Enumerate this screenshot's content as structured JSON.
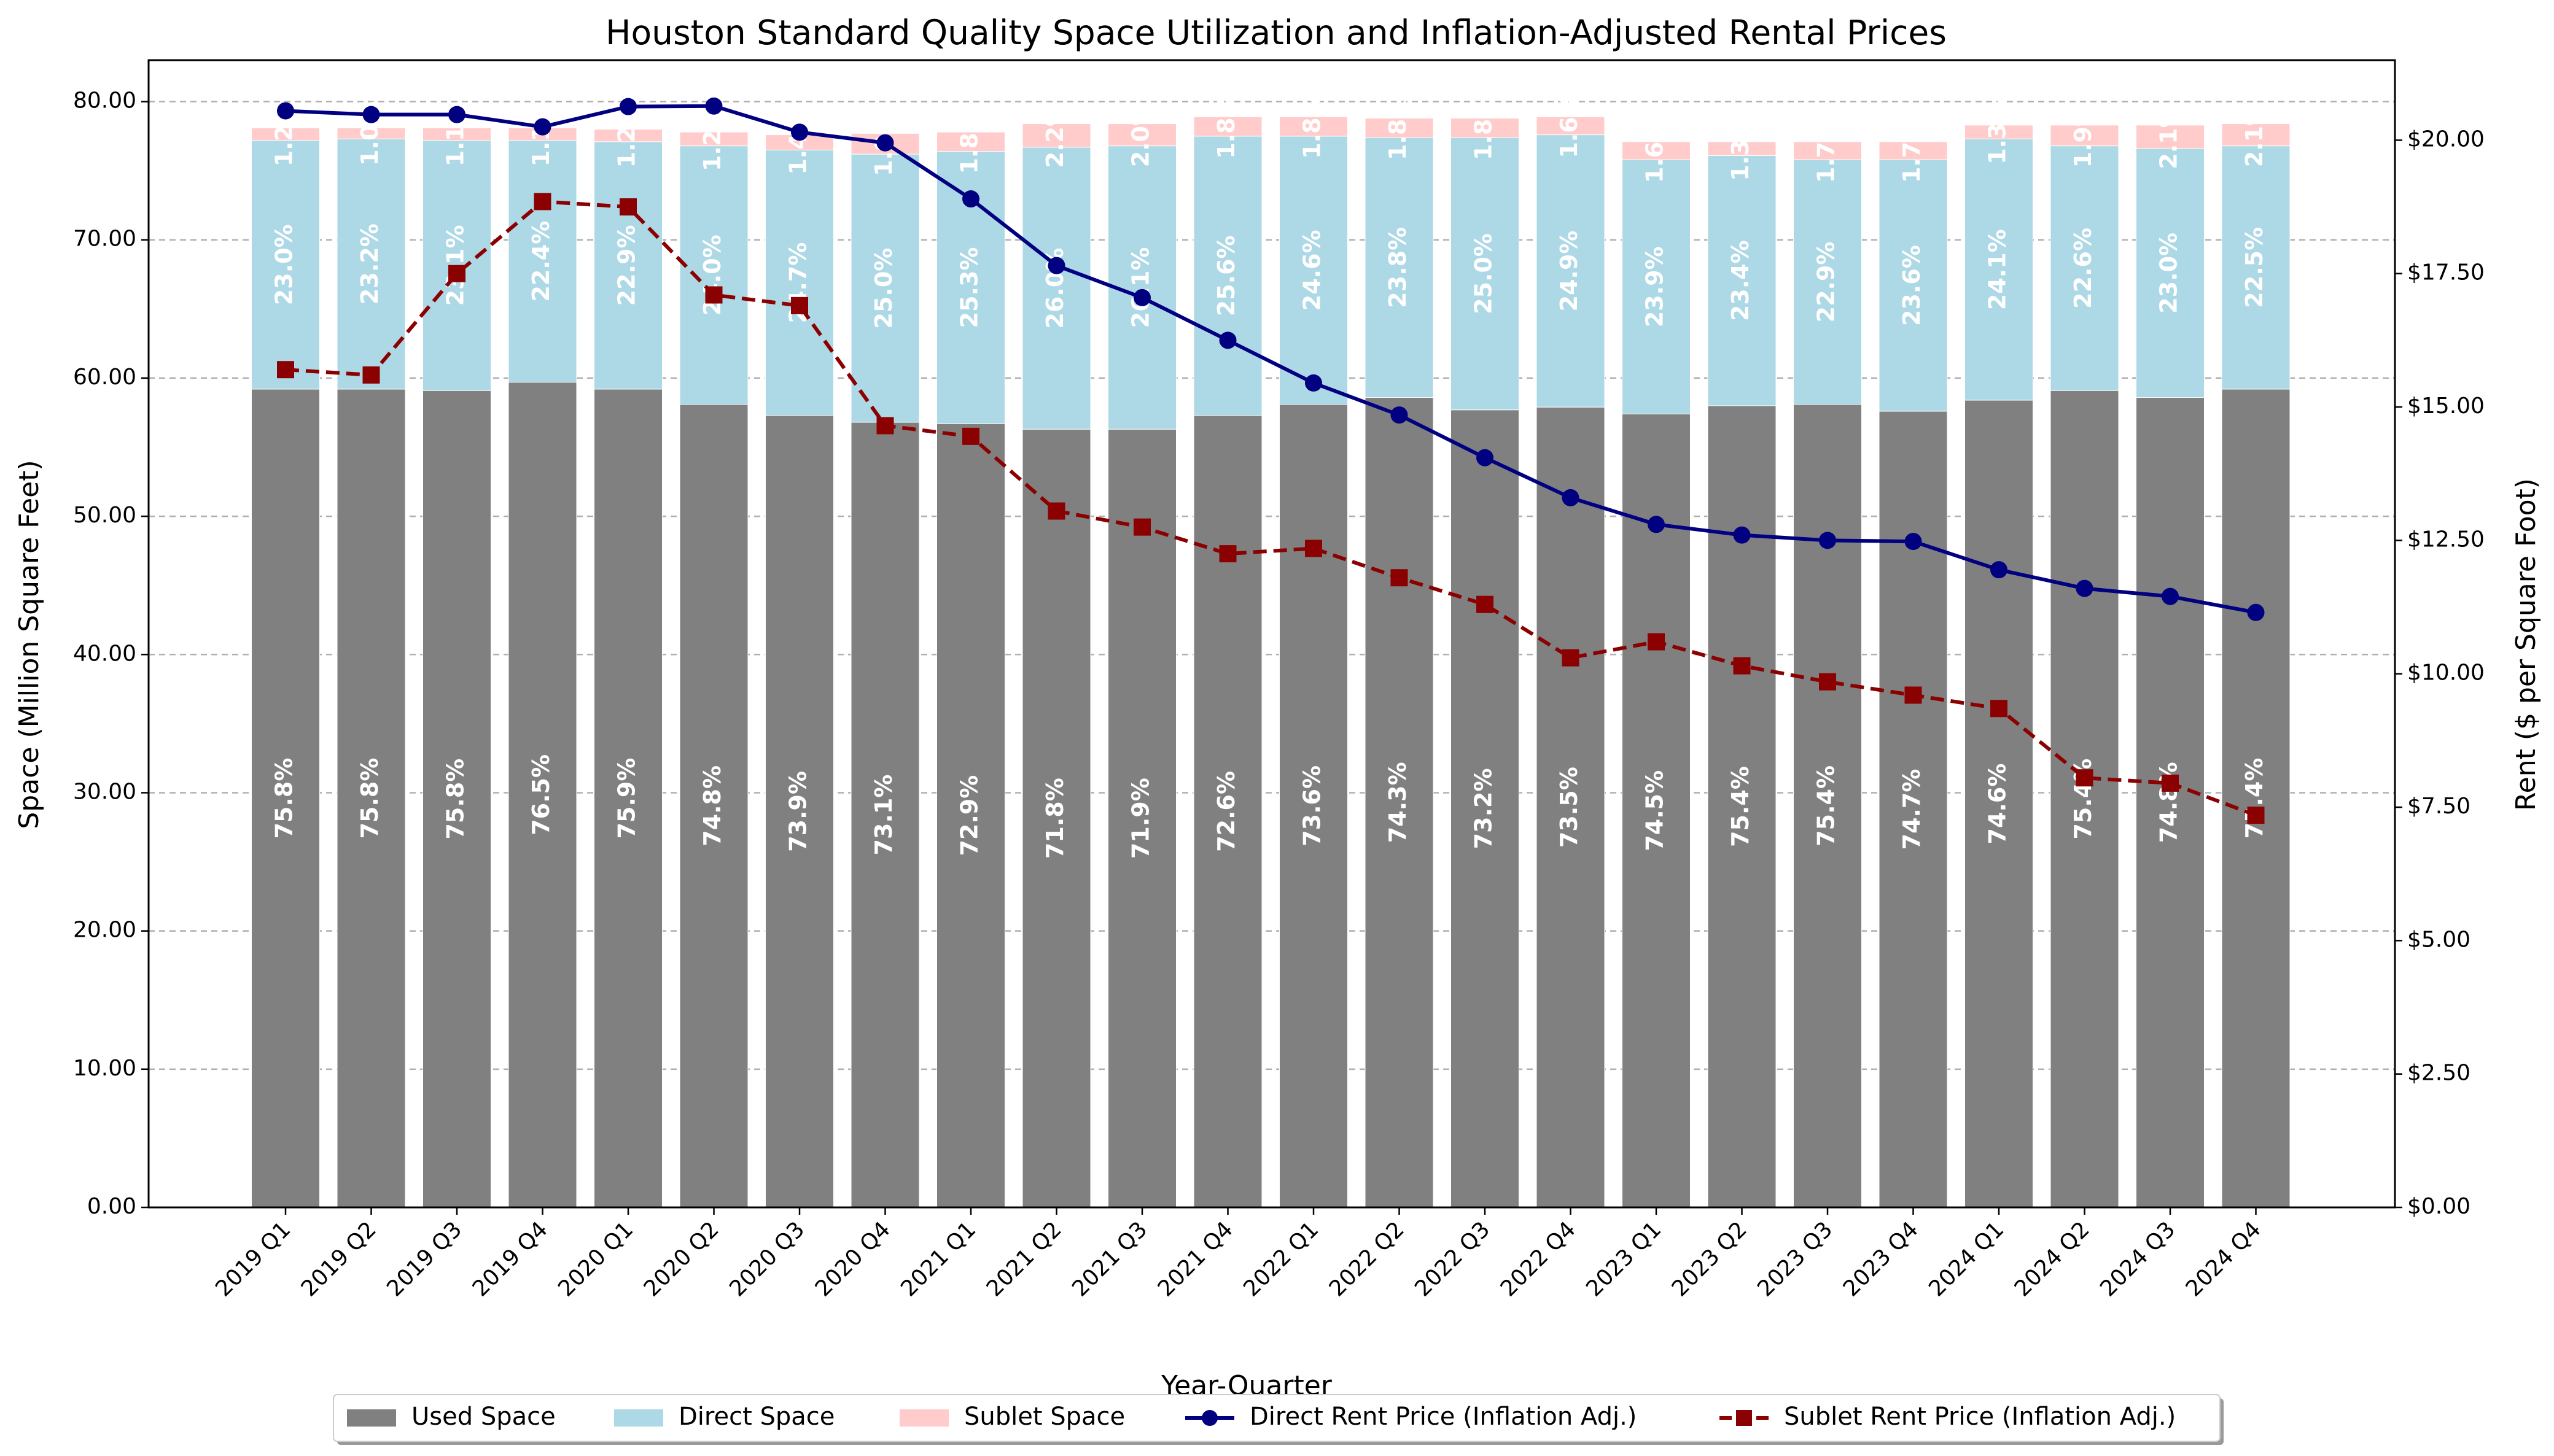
{
  "chart_data": {
    "type": "bar",
    "title": "Houston Standard Quality Space Utilization and Inflation-Adjusted Rental Prices",
    "xlabel": "Year-Quarter",
    "ylabel_left": "Space (Million Square Feet)",
    "ylabel_right": "Rent ($ per Square Foot)",
    "ylim_left": [
      0,
      83
    ],
    "ylim_right": [
      0,
      21.5
    ],
    "left_ticks": [
      "0.00",
      "10.00",
      "20.00",
      "30.00",
      "40.00",
      "50.00",
      "60.00",
      "70.00",
      "80.00"
    ],
    "right_ticks": [
      "$0.00",
      "$2.50",
      "$5.00",
      "$7.50",
      "$10.00",
      "$12.50",
      "$15.00",
      "$17.50",
      "$20.00"
    ],
    "grid": true,
    "legend_position": "bottom-center",
    "categories": [
      "2019 Q1",
      "2019 Q2",
      "2019 Q3",
      "2019 Q4",
      "2020 Q1",
      "2020 Q2",
      "2020 Q3",
      "2020 Q4",
      "2021 Q1",
      "2021 Q2",
      "2021 Q3",
      "2021 Q4",
      "2022 Q1",
      "2022 Q2",
      "2022 Q3",
      "2022 Q4",
      "2023 Q1",
      "2023 Q2",
      "2023 Q3",
      "2023 Q4",
      "2024 Q1",
      "2024 Q2",
      "2024 Q3",
      "2024 Q4"
    ],
    "stacked_bars": [
      {
        "name": "Used Space",
        "color": "#808080",
        "values": [
          59.2,
          59.2,
          59.1,
          59.7,
          59.2,
          58.1,
          57.3,
          56.8,
          56.7,
          56.3,
          56.3,
          57.3,
          58.1,
          58.6,
          57.7,
          57.9,
          57.4,
          58.0,
          58.1,
          57.6,
          58.4,
          59.1,
          58.6,
          59.2
        ],
        "labels": [
          "75.8%",
          "75.8%",
          "75.8%",
          "76.5%",
          "75.9%",
          "74.8%",
          "73.9%",
          "73.1%",
          "72.9%",
          "71.8%",
          "71.9%",
          "72.6%",
          "73.6%",
          "74.3%",
          "73.2%",
          "73.5%",
          "74.5%",
          "75.4%",
          "75.4%",
          "74.7%",
          "74.6%",
          "75.4%",
          "74.8%",
          "75.4%"
        ]
      },
      {
        "name": "Direct Space",
        "color": "#add8e6",
        "values": [
          18.0,
          18.1,
          18.1,
          17.5,
          17.9,
          18.7,
          19.2,
          19.4,
          19.7,
          20.4,
          20.5,
          20.2,
          19.4,
          18.8,
          19.7,
          19.7,
          18.4,
          18.1,
          17.7,
          18.2,
          18.9,
          17.7,
          18.0,
          17.6
        ],
        "labels": [
          "23.0%",
          "23.2%",
          "23.1%",
          "22.4%",
          "22.9%",
          "24.0%",
          "24.7%",
          "25.0%",
          "25.3%",
          "26.0%",
          "26.1%",
          "25.6%",
          "24.6%",
          "23.8%",
          "25.0%",
          "24.9%",
          "23.9%",
          "23.4%",
          "22.9%",
          "23.6%",
          "24.1%",
          "22.6%",
          "23.0%",
          "22.5%"
        ]
      },
      {
        "name": "Sublet Space",
        "color": "#ffcccb",
        "values": [
          0.9,
          0.8,
          0.9,
          0.9,
          0.9,
          1.0,
          1.1,
          1.5,
          1.4,
          1.7,
          1.6,
          1.4,
          1.4,
          1.4,
          1.4,
          1.3,
          1.3,
          1.0,
          1.3,
          1.3,
          1.0,
          1.5,
          1.7,
          1.6
        ],
        "labels": [
          "1.2%",
          "1.0%",
          "1.1%",
          "1.1%",
          "1.2%",
          "1.2%",
          "1.4%",
          "1.9%",
          "1.8%",
          "2.2%",
          "2.0%",
          "1.8%",
          "1.8%",
          "1.8%",
          "1.8%",
          "1.6%",
          "1.6%",
          "1.3%",
          "1.7%",
          "1.7%",
          "1.3%",
          "1.9%",
          "2.1%",
          "2.1%"
        ]
      }
    ],
    "lines": [
      {
        "name": "Direct Rent Price (Inflation Adj.)",
        "color": "#000080",
        "marker": "circle",
        "style": "solid",
        "values": [
          20.55,
          20.48,
          20.48,
          20.25,
          20.63,
          20.64,
          20.15,
          19.95,
          18.9,
          17.65,
          17.05,
          16.25,
          15.45,
          14.85,
          14.05,
          13.3,
          12.8,
          12.6,
          12.5,
          12.48,
          11.95,
          11.6,
          11.45,
          11.15
        ]
      },
      {
        "name": "Sublet Rent Price (Inflation Adj.)",
        "color": "#8b0000",
        "marker": "square",
        "style": "dashed",
        "values": [
          15.7,
          15.6,
          17.5,
          18.85,
          18.75,
          17.1,
          16.9,
          14.65,
          14.45,
          13.05,
          12.75,
          12.25,
          12.35,
          11.8,
          11.3,
          10.3,
          10.6,
          10.15,
          9.85,
          9.6,
          9.35,
          8.05,
          7.95,
          7.35
        ]
      }
    ]
  }
}
